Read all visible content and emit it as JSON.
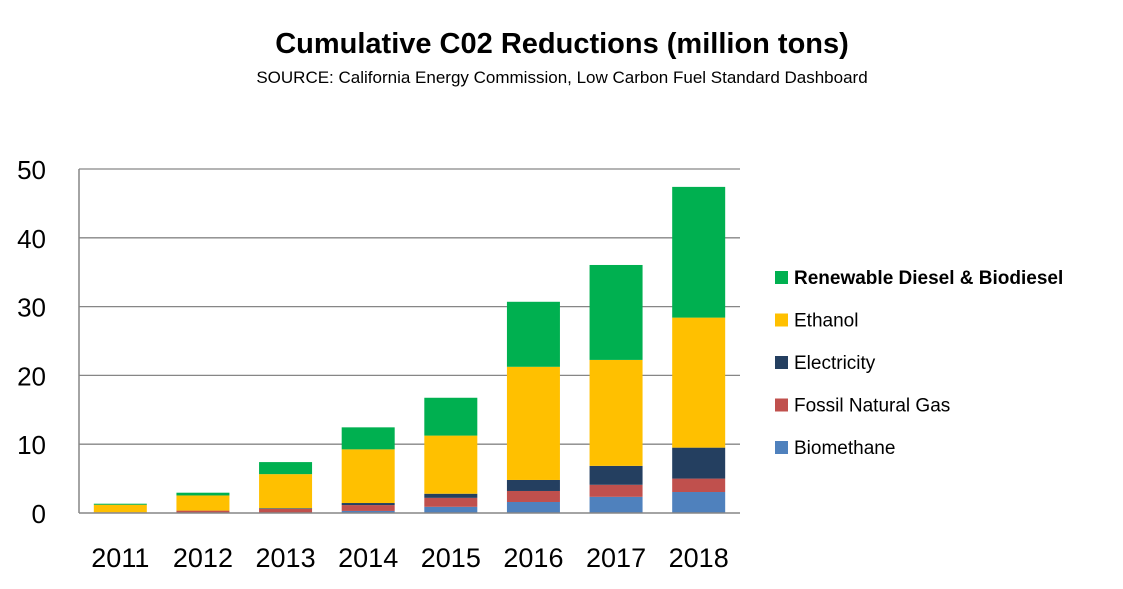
{
  "chart_data": {
    "type": "bar",
    "stacked": true,
    "title": "Cumulative C02 Reductions (million tons)",
    "subtitle": "SOURCE: California Energy Commission, Low Carbon Fuel Standard Dashboard",
    "xlabel": "",
    "ylabel": "",
    "ylim": [
      0,
      50
    ],
    "yticks": [
      0,
      10,
      20,
      30,
      40,
      50
    ],
    "grid": true,
    "legend_position": "right",
    "categories": [
      "2011",
      "2012",
      "2013",
      "2014",
      "2015",
      "2016",
      "2017",
      "2018"
    ],
    "series": [
      {
        "name": "Biomethane",
        "color": "#4F81BD",
        "values": [
          0.0,
          0.0,
          0.0,
          0.3,
          0.9,
          1.6,
          2.35,
          3.05
        ]
      },
      {
        "name": "Fossil Natural Gas",
        "color": "#C0504D",
        "values": [
          0.1,
          0.35,
          0.6,
          0.85,
          1.3,
          1.6,
          1.75,
          1.95
        ]
      },
      {
        "name": "Electricity",
        "color": "#243F60",
        "values": [
          0.0,
          0.0,
          0.1,
          0.3,
          0.6,
          1.6,
          2.75,
          4.5
        ]
      },
      {
        "name": "Ethanol",
        "color": "#FFC000",
        "values": [
          1.1,
          2.2,
          4.95,
          7.8,
          8.45,
          16.45,
          15.4,
          18.9
        ]
      },
      {
        "name": "Renewable Diesel & Biodiesel",
        "color": "#00B050",
        "values": [
          0.15,
          0.4,
          1.75,
          3.2,
          5.5,
          9.45,
          13.8,
          19.0
        ]
      }
    ],
    "legend_order": [
      "Renewable Diesel & Biodiesel",
      "Ethanol",
      "Electricity",
      "Fossil Natural Gas",
      "Biomethane"
    ],
    "legend_bold": [
      "Renewable Diesel & Biodiesel"
    ]
  }
}
